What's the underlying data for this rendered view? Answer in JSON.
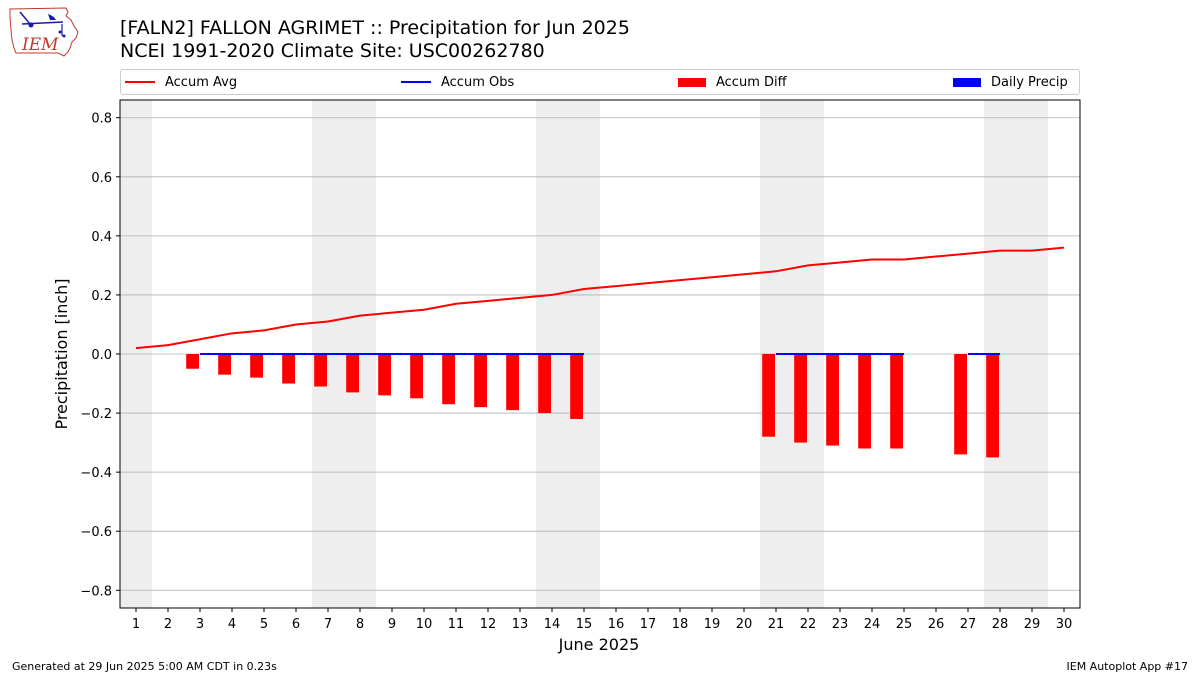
{
  "header": {
    "title_line1": "[FALN2] FALLON AGRIMET :: Precipitation for Jun 2025",
    "title_line2": "NCEI 1991-2020 Climate Site: USC00262780",
    "logo_text": "IEM"
  },
  "legend": {
    "items": [
      {
        "label": "Accum Avg",
        "color": "#ff0000",
        "kind": "line"
      },
      {
        "label": "Accum Obs",
        "color": "#0000ff",
        "kind": "line"
      },
      {
        "label": "Accum Diff",
        "color": "#ff0000",
        "kind": "box"
      },
      {
        "label": "Daily Precip",
        "color": "#0000ff",
        "kind": "box"
      }
    ]
  },
  "footer": {
    "left": "Generated at 29 Jun 2025 5:00 AM CDT in 0.23s",
    "right": "IEM Autoplot App #17"
  },
  "chart_data": {
    "type": "line",
    "xlabel": "June 2025",
    "ylabel": "Precipitation [inch]",
    "x": [
      1,
      2,
      3,
      4,
      5,
      6,
      7,
      8,
      9,
      10,
      11,
      12,
      13,
      14,
      15,
      16,
      17,
      18,
      19,
      20,
      21,
      22,
      23,
      24,
      25,
      26,
      27,
      28,
      29,
      30
    ],
    "xlim": [
      0.5,
      30.5
    ],
    "ylim": [
      -0.86,
      0.86
    ],
    "yticks": [
      -0.8,
      -0.6,
      -0.4,
      -0.2,
      0.0,
      0.2,
      0.4,
      0.6,
      0.8
    ],
    "ytick_labels": [
      "−0.8",
      "−0.6",
      "−0.4",
      "−0.2",
      "0.0",
      "0.2",
      "0.4",
      "0.6",
      "0.8"
    ],
    "grid": "horizontal",
    "legend_position": "top",
    "weekend_shading": [
      [
        0.5,
        1.5
      ],
      [
        6.5,
        8.5
      ],
      [
        13.5,
        15.5
      ],
      [
        20.5,
        22.5
      ],
      [
        27.5,
        29.5
      ]
    ],
    "series": [
      {
        "name": "Accum Avg",
        "color": "#ff0000",
        "x": [
          1,
          2,
          3,
          4,
          5,
          6,
          7,
          8,
          9,
          10,
          11,
          12,
          13,
          14,
          15,
          16,
          17,
          18,
          19,
          20,
          21,
          22,
          23,
          24,
          25,
          26,
          27,
          28,
          29,
          30
        ],
        "values": [
          0.02,
          0.03,
          0.05,
          0.07,
          0.08,
          0.1,
          0.11,
          0.13,
          0.14,
          0.15,
          0.17,
          0.18,
          0.19,
          0.2,
          0.22,
          0.23,
          0.24,
          0.25,
          0.26,
          0.27,
          0.28,
          0.3,
          0.31,
          0.32,
          0.32,
          0.33,
          0.34,
          0.35,
          0.35,
          0.36
        ]
      },
      {
        "name": "Accum Obs",
        "color": "#0000ff",
        "segments": [
          {
            "x": [
              3,
              15
            ],
            "values": [
              0.0,
              0.0
            ]
          },
          {
            "x": [
              21,
              25
            ],
            "values": [
              0.0,
              0.0
            ]
          },
          {
            "x": [
              27,
              28
            ],
            "values": [
              0.0,
              0.0
            ]
          }
        ]
      },
      {
        "name": "Accum Diff",
        "color": "#ff0000",
        "type": "bar",
        "x": [
          3,
          4,
          5,
          6,
          7,
          8,
          9,
          10,
          11,
          12,
          13,
          14,
          15,
          21,
          22,
          23,
          24,
          25,
          27,
          28
        ],
        "values": [
          -0.05,
          -0.07,
          -0.08,
          -0.1,
          -0.11,
          -0.13,
          -0.14,
          -0.15,
          -0.17,
          -0.18,
          -0.19,
          -0.2,
          -0.22,
          -0.28,
          -0.3,
          -0.31,
          -0.32,
          -0.32,
          -0.34,
          -0.35
        ]
      },
      {
        "name": "Daily Precip",
        "color": "#0000ff",
        "type": "bar",
        "x": [],
        "values": []
      }
    ]
  }
}
